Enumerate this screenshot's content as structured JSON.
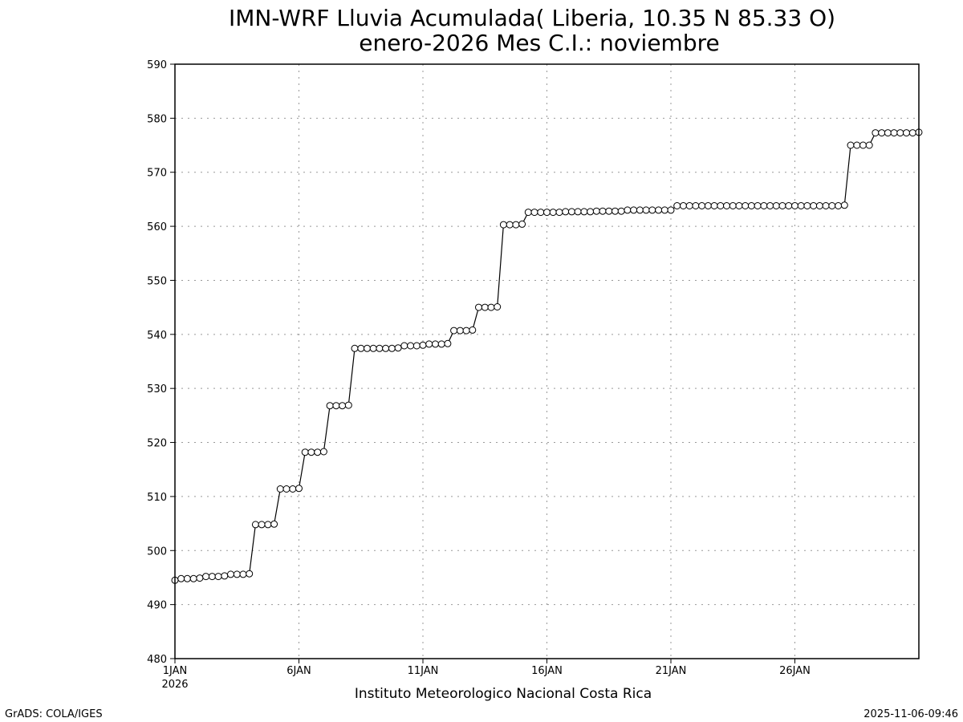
{
  "chart_data": {
    "type": "line",
    "title": "IMN-WRF  Lluvia Acumulada( Liberia, 10.35  N 85.33  O)",
    "subtitle": "enero-2026 Mes C.I.: noviembre",
    "xlabel": "Instituto Meteorologico Nacional Costa Rica",
    "ylabel": "",
    "ylim": [
      480,
      590
    ],
    "yticks": [
      480,
      490,
      500,
      510,
      520,
      530,
      540,
      550,
      560,
      570,
      580,
      590
    ],
    "xlim": [
      1,
      31
    ],
    "xticks": [
      {
        "day": 1,
        "label": "1JAN",
        "sublabel": "2026"
      },
      {
        "day": 6,
        "label": "6JAN",
        "sublabel": ""
      },
      {
        "day": 11,
        "label": "11JAN",
        "sublabel": ""
      },
      {
        "day": 16,
        "label": "16JAN",
        "sublabel": ""
      },
      {
        "day": 21,
        "label": "21JAN",
        "sublabel": ""
      },
      {
        "day": 26,
        "label": "26JAN",
        "sublabel": ""
      }
    ],
    "grid": true,
    "marker": "open-circle",
    "line_color": "#000000",
    "x_step_days": 0.25,
    "x_start_day": 1,
    "values": [
      494.5,
      494.8,
      494.8,
      494.8,
      494.9,
      495.2,
      495.2,
      495.2,
      495.3,
      495.6,
      495.6,
      495.6,
      495.7,
      504.8,
      504.8,
      504.8,
      504.9,
      511.4,
      511.4,
      511.4,
      511.5,
      518.2,
      518.2,
      518.2,
      518.3,
      526.8,
      526.8,
      526.8,
      526.9,
      537.4,
      537.4,
      537.4,
      537.4,
      537.4,
      537.4,
      537.4,
      537.5,
      537.9,
      537.9,
      537.9,
      538.0,
      538.2,
      538.2,
      538.2,
      538.3,
      540.7,
      540.7,
      540.7,
      540.8,
      545.0,
      545.0,
      545.0,
      545.1,
      560.3,
      560.3,
      560.3,
      560.4,
      562.6,
      562.6,
      562.6,
      562.6,
      562.6,
      562.6,
      562.7,
      562.7,
      562.7,
      562.7,
      562.7,
      562.8,
      562.8,
      562.8,
      562.8,
      562.8,
      563.0,
      563.0,
      563.0,
      563.0,
      563.0,
      563.0,
      563.0,
      563.0,
      563.8,
      563.8,
      563.8,
      563.8,
      563.8,
      563.8,
      563.8,
      563.8,
      563.8,
      563.8,
      563.8,
      563.8,
      563.8,
      563.8,
      563.8,
      563.8,
      563.8,
      563.8,
      563.8,
      563.8,
      563.8,
      563.8,
      563.8,
      563.8,
      563.8,
      563.8,
      563.8,
      563.9,
      575.0,
      575.0,
      575.0,
      575.0,
      577.3,
      577.3,
      577.3,
      577.3,
      577.3,
      577.3,
      577.3,
      577.4
    ]
  },
  "footer": {
    "left": "GrADS: COLA/IGES",
    "right": "2025-11-06-09:46"
  }
}
